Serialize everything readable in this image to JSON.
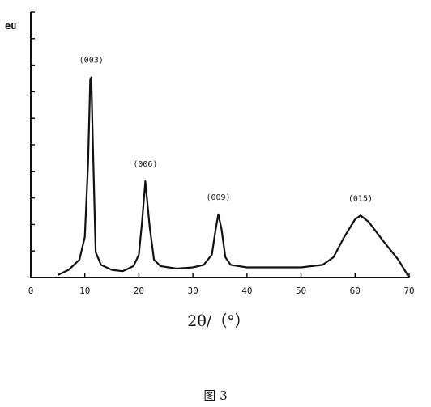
{
  "chart_data": {
    "type": "line",
    "ylabel": "eu",
    "xlabel": "2θ/（°）",
    "xlim": [
      0,
      70
    ],
    "x_ticks": [
      "0",
      "10",
      "20",
      "30",
      "40",
      "50",
      "60",
      "70"
    ],
    "y_tick_count": 10,
    "grid": false,
    "series": [
      {
        "x": [
          5,
          7,
          9,
          10,
          10.6,
          11,
          11.2,
          11.5,
          12,
          13,
          15,
          17,
          19,
          20,
          20.6,
          21.2,
          22,
          22.8,
          24,
          27,
          30,
          32,
          33.5,
          34.2,
          34.7,
          35.3,
          36,
          37,
          40,
          45,
          50,
          54,
          56,
          58,
          60,
          61,
          62.5,
          65,
          68,
          70
        ],
        "y": [
          0.01,
          0.03,
          0.07,
          0.16,
          0.45,
          0.78,
          0.79,
          0.52,
          0.1,
          0.05,
          0.03,
          0.025,
          0.045,
          0.09,
          0.22,
          0.38,
          0.2,
          0.07,
          0.045,
          0.035,
          0.04,
          0.05,
          0.09,
          0.19,
          0.25,
          0.19,
          0.08,
          0.05,
          0.04,
          0.04,
          0.04,
          0.05,
          0.08,
          0.16,
          0.23,
          0.245,
          0.22,
          0.15,
          0.07,
          0.0
        ]
      }
    ],
    "peak_labels": [
      {
        "text": "(003)",
        "x": 11.2,
        "y": 0.79
      },
      {
        "text": "(006)",
        "x": 21.2,
        "y": 0.38
      },
      {
        "text": "(009)",
        "x": 34.7,
        "y": 0.25
      },
      {
        "text": "(015)",
        "x": 61.0,
        "y": 0.245
      }
    ]
  },
  "caption": "图 3"
}
